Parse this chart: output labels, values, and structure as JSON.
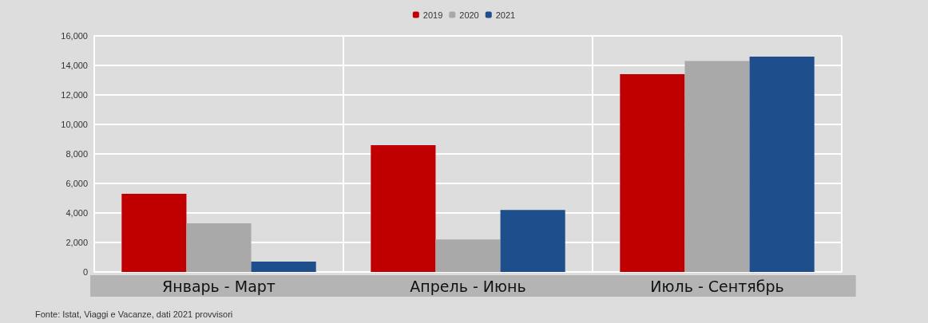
{
  "chart_data": {
    "type": "bar",
    "categories": [
      "Январь - Март",
      "Апрель - Июнь",
      "Июль - Сентябрь"
    ],
    "series": [
      {
        "name": "2019",
        "color": "#c00000",
        "values": [
          5300,
          8600,
          13400
        ]
      },
      {
        "name": "2020",
        "color": "#a9a9a9",
        "values": [
          3300,
          2200,
          14300
        ]
      },
      {
        "name": "2021",
        "color": "#1f4e8c",
        "values": [
          700,
          4200,
          14600
        ]
      }
    ],
    "ylim": [
      0,
      16000
    ],
    "yticks": [
      0,
      {
        "value": 2000,
        "label": "2,000"
      },
      {
        "value": 4000,
        "label": "4,000"
      },
      {
        "value": 6000,
        "label": "6,000"
      },
      {
        "value": 8000,
        "label": "8,000"
      },
      {
        "value": 10000,
        "label": "10,000"
      },
      {
        "value": 12000,
        "label": "12,000"
      },
      {
        "value": 14000,
        "label": "14,000"
      },
      {
        "value": 16000,
        "label": "16,000"
      }
    ],
    "grid": true,
    "legend": "top",
    "annotations": [
      "Fonte: Istat, Viaggi e Vacanze, dati 2021 provvisori"
    ]
  }
}
